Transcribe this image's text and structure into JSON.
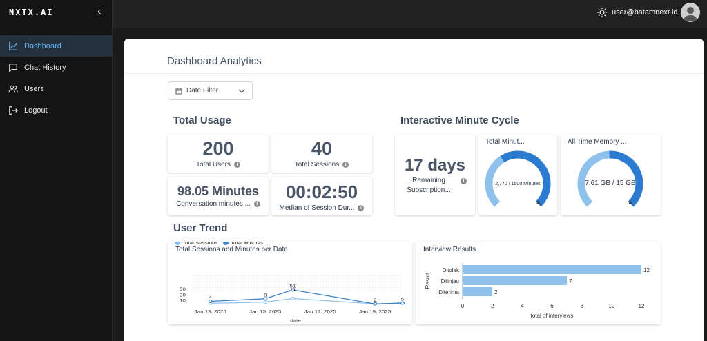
{
  "sidebar": {
    "logo": "NXTX.AI",
    "items": [
      {
        "label": "Dashboard",
        "icon": "chart-icon",
        "active": true
      },
      {
        "label": "Chat History",
        "icon": "chat-icon"
      },
      {
        "label": "Users",
        "icon": "users-icon"
      },
      {
        "label": "Logout",
        "icon": "logout-icon"
      }
    ]
  },
  "header": {
    "user_email": "user@batamnext.id"
  },
  "page": {
    "title": "Dashboard Analytics",
    "date_filter": "Date Filter"
  },
  "total_usage": {
    "title": "Total Usage",
    "users": {
      "value": "200",
      "label": "Total Users"
    },
    "sessions": {
      "value": "40",
      "label": "Total Sessions"
    },
    "minutes": {
      "value": "98.05 Minutes",
      "label": "Conversation minutes ..."
    },
    "median": {
      "value": "00:02:50",
      "label": "Median of Session Dur..."
    }
  },
  "cycle": {
    "title": "Interactive Minute Cycle",
    "days": {
      "value": "17 days",
      "label1": "Remaining",
      "label2": "Subscription..."
    },
    "minutes_gauge": {
      "label": "Total Minut...",
      "text": "2,770 / 1500 Minutes",
      "used": 2770,
      "total": 1500
    },
    "memory_gauge": {
      "label": "All Time Memory ...",
      "text": "7.61 GB / 15 GB",
      "used": 7.61,
      "total": 15
    }
  },
  "trend": {
    "title": "User Trend"
  },
  "colors": {
    "light_blue": "#90c2ec",
    "blue": "#3b82c4",
    "gauge_dark": "#2b7bd0",
    "gauge_light": "#8ec1ec"
  },
  "chart_data": [
    {
      "type": "line",
      "title": "Total Sessions and Minutes per Date",
      "xlabel": "date",
      "x": [
        "Jan 13, 2025",
        "Jan 15, 2025",
        "Jan 16, 2025",
        "Jan 19, 2025",
        "Jan 20, 2025"
      ],
      "x_ticks": [
        "Jan 13, 2025",
        "Jan 15, 2025",
        "Jan 17, 2025",
        "Jan 19, 2025"
      ],
      "y_ticks": [
        "10",
        "30",
        "50"
      ],
      "ylim": [
        0,
        60
      ],
      "legend": "top-left",
      "series": [
        {
          "name": "Total Sessions",
          "values": [
            4,
            8,
            21,
            2,
            5
          ],
          "color": "#90c2ec"
        },
        {
          "name": "Total Minutes",
          "values": [
            11,
            20,
            51,
            2,
            5
          ],
          "color": "#3b82c4"
        }
      ],
      "data_labels": [
        {
          "x": "Jan 13, 2025",
          "y": 11,
          "text": "4"
        },
        {
          "x": "Jan 15, 2025",
          "y": 20,
          "text": "8"
        },
        {
          "x": "Jan 16, 2025",
          "y": 51,
          "text": "51"
        },
        {
          "x": "Jan 16, 2025",
          "y": 38,
          "text": "21"
        },
        {
          "x": "Jan 19, 2025",
          "y": 2,
          "text": "2"
        },
        {
          "x": "Jan 20, 2025",
          "y": 5,
          "text": "5"
        }
      ]
    },
    {
      "type": "bar",
      "orientation": "horizontal",
      "title": "Interview Results",
      "categories": [
        "Ditolak",
        "Ditinjau",
        "Diterima"
      ],
      "values": [
        12,
        7,
        2
      ],
      "xlabel": "total of interviews",
      "ylabel": "Result",
      "xlim": [
        0,
        12
      ],
      "x_ticks": [
        "0",
        "2",
        "4",
        "6",
        "8",
        "10",
        "12"
      ],
      "color": "#90c2ec"
    }
  ]
}
